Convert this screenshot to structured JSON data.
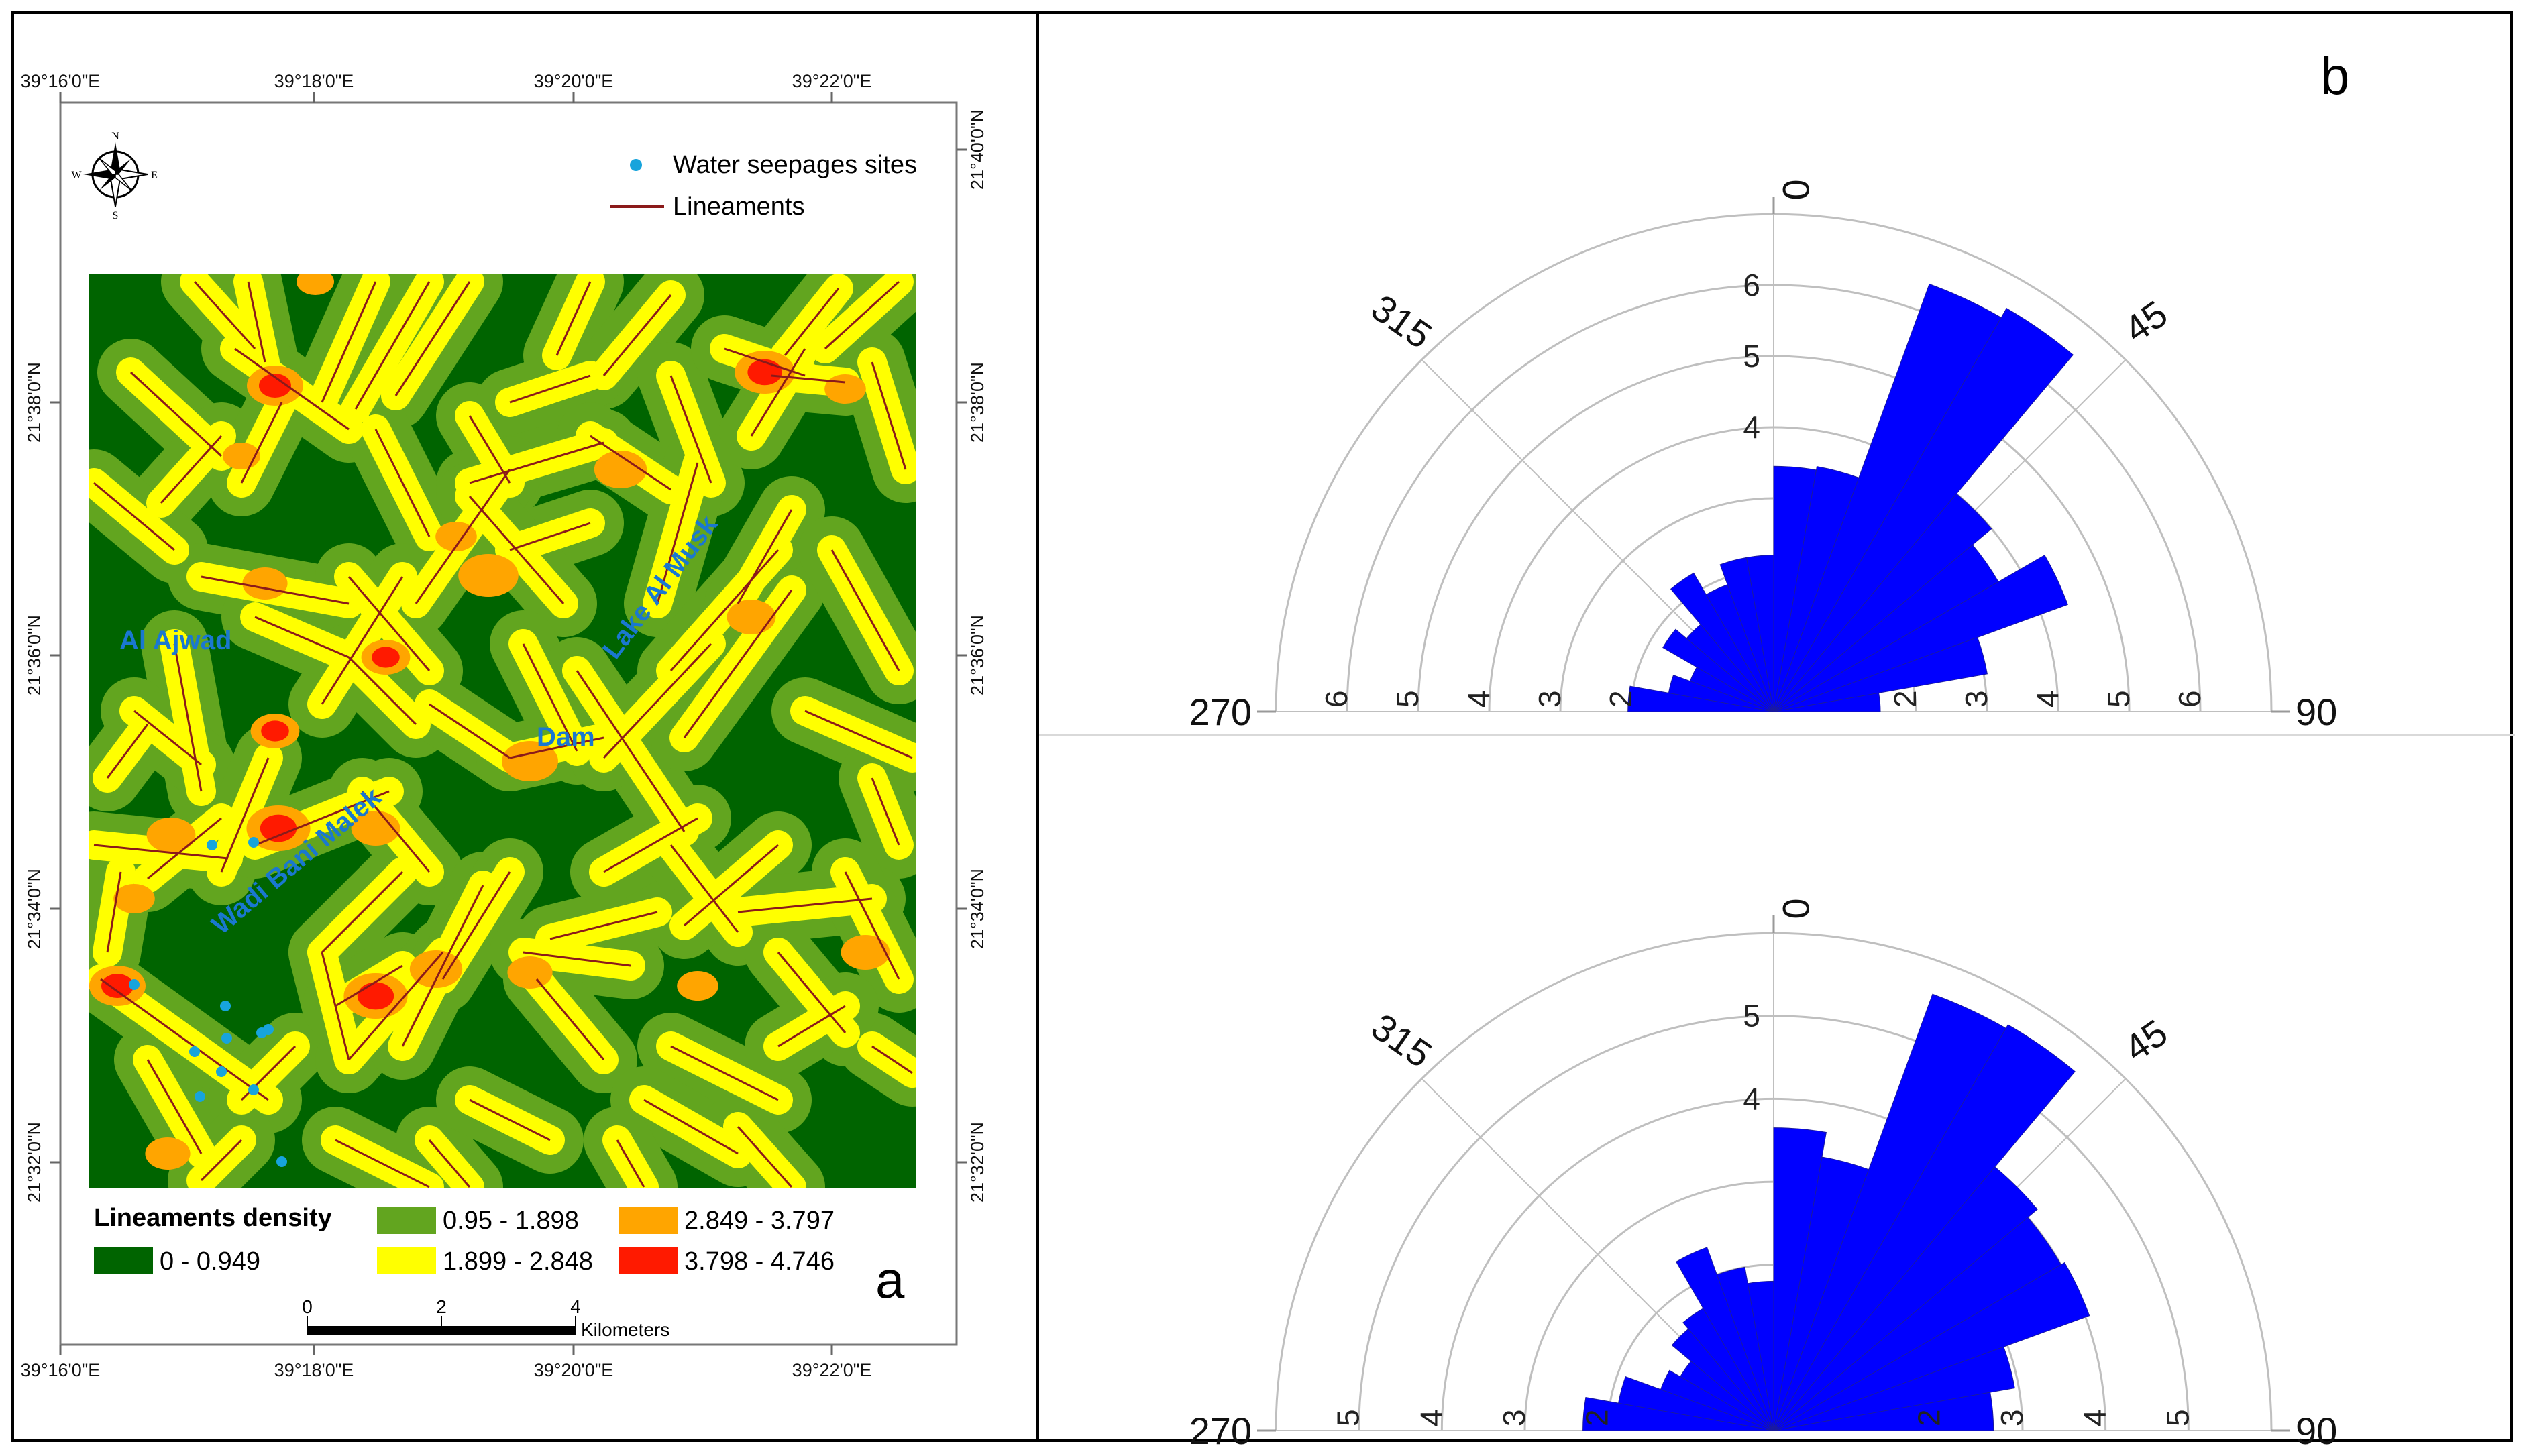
{
  "panel_a": {
    "letter": "a",
    "coords": {
      "lon_top": [
        "39°16'0\"E",
        "39°18'0\"E",
        "39°20'0\"E",
        "39°22'0\"E"
      ],
      "lon_bottom": [
        "39°16'0\"E",
        "39°18'0\"E",
        "39°20'0\"E",
        "39°22'0\"E"
      ],
      "lat_left": [
        "21°38'0\"N",
        "21°36'0\"N",
        "21°34'0\"N",
        "21°32'0\"N"
      ],
      "lat_right": [
        "21°40'0\"N",
        "21°38'0\"N",
        "21°36'0\"N",
        "21°34'0\"N",
        "21°32'0\"N"
      ]
    },
    "compass": {
      "n": "N",
      "s": "S",
      "e": "E",
      "w": "W"
    },
    "legend_top": {
      "seepage_label": "Water seepages sites",
      "lineament_label": "Lineaments"
    },
    "place_labels": {
      "ajwad": "Al Ajwad",
      "lake": "Lake Al Musk",
      "dam": "Dam",
      "wadi": "Wadi Bani Malek"
    },
    "density_legend": {
      "title": "Lineaments density",
      "classes": [
        {
          "range": "0 - 0.949",
          "color": "#006400"
        },
        {
          "range": "0.95 - 1.898",
          "color": "#62a51f"
        },
        {
          "range": "1.899 - 2.848",
          "color": "#ffff00"
        },
        {
          "range": "2.849 - 3.797",
          "color": "#ffa500"
        },
        {
          "range": "3.798 - 4.746",
          "color": "#ff1a00"
        }
      ]
    },
    "scale_bar": {
      "ticks": [
        "0",
        "2",
        "4"
      ],
      "unit": "Kilometers"
    },
    "colors": {
      "seepage": "#17a4dc",
      "lineament": "#8b1a1a"
    }
  },
  "panel_b": {
    "letter": "b",
    "color": "#0000ff",
    "roses": [
      {
        "angle_labels": [
          "0",
          "45",
          "90",
          "270",
          "315"
        ],
        "rmax": 7,
        "ring_labels_left": [
          "6",
          "5",
          "4",
          "3",
          "2"
        ],
        "ring_labels_right": [
          "2",
          "3",
          "4",
          "5",
          "6"
        ],
        "ring_labels_vertical": [
          "6",
          "5",
          "4"
        ],
        "bins": [
          {
            "from": 0,
            "to": 10,
            "value": 3.45
          },
          {
            "from": 10,
            "to": 20,
            "value": 3.5
          },
          {
            "from": 20,
            "to": 30,
            "value": 6.4
          },
          {
            "from": 30,
            "to": 40,
            "value": 6.55
          },
          {
            "from": 40,
            "to": 50,
            "value": 4.0
          },
          {
            "from": 50,
            "to": 60,
            "value": 3.65
          },
          {
            "from": 60,
            "to": 70,
            "value": 4.4
          },
          {
            "from": 70,
            "to": 80,
            "value": 3.05
          },
          {
            "from": 80,
            "to": 90,
            "value": 1.5
          },
          {
            "from": 270,
            "to": 280,
            "value": 2.05
          },
          {
            "from": 280,
            "to": 290,
            "value": 1.5
          },
          {
            "from": 290,
            "to": 300,
            "value": 1.25
          },
          {
            "from": 300,
            "to": 310,
            "value": 1.8
          },
          {
            "from": 310,
            "to": 320,
            "value": 1.6
          },
          {
            "from": 320,
            "to": 330,
            "value": 2.25
          },
          {
            "from": 330,
            "to": 340,
            "value": 1.9
          },
          {
            "from": 340,
            "to": 350,
            "value": 2.2
          },
          {
            "from": 350,
            "to": 360,
            "value": 2.2
          }
        ]
      },
      {
        "angle_labels": [
          "0",
          "45",
          "90",
          "270",
          "315"
        ],
        "rmax": 6,
        "ring_labels_left": [
          "5",
          "4",
          "3",
          "2"
        ],
        "ring_labels_right": [
          "2",
          "3",
          "4",
          "5"
        ],
        "ring_labels_vertical": [
          "5",
          "4"
        ],
        "bins": [
          {
            "from": 0,
            "to": 10,
            "value": 3.65
          },
          {
            "from": 10,
            "to": 20,
            "value": 3.35
          },
          {
            "from": 20,
            "to": 30,
            "value": 5.6
          },
          {
            "from": 30,
            "to": 40,
            "value": 5.65
          },
          {
            "from": 40,
            "to": 50,
            "value": 4.15
          },
          {
            "from": 50,
            "to": 60,
            "value": 4.0
          },
          {
            "from": 60,
            "to": 70,
            "value": 4.05
          },
          {
            "from": 70,
            "to": 80,
            "value": 2.95
          },
          {
            "from": 80,
            "to": 90,
            "value": 2.65
          },
          {
            "from": 270,
            "to": 280,
            "value": 2.3
          },
          {
            "from": 280,
            "to": 290,
            "value": 1.9
          },
          {
            "from": 290,
            "to": 300,
            "value": 1.45
          },
          {
            "from": 300,
            "to": 310,
            "value": 1.3
          },
          {
            "from": 310,
            "to": 320,
            "value": 1.6
          },
          {
            "from": 320,
            "to": 330,
            "value": 1.7
          },
          {
            "from": 330,
            "to": 340,
            "value": 2.35
          },
          {
            "from": 340,
            "to": 350,
            "value": 2.0
          },
          {
            "from": 350,
            "to": 360,
            "value": 1.8
          }
        ]
      }
    ]
  }
}
